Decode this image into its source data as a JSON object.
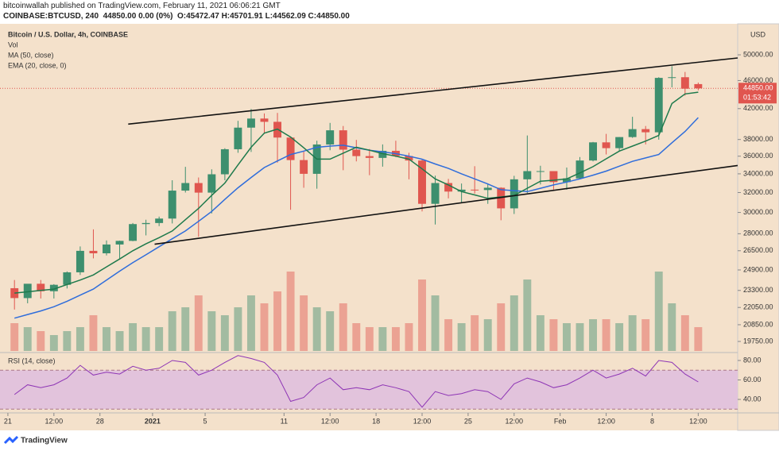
{
  "header": {
    "publisher": "bitcoinwallah published on TradingView.com, February 11, 2021 06:06:21 GMT",
    "symbol_line": "COINBASE:BTCUSD, 240  44850.00 0.00 (0%)  O:45472.47 H:45701.91 L:44562.09 C:44850.00"
  },
  "chart_data": {
    "type": "candlestick",
    "title": "Bitcoin / U.S. Dollar, 4h, COINBASE",
    "volume_label": "Vol",
    "y_unit": "USD",
    "categories": [
      null,
      null,
      null,
      null,
      null,
      null,
      null,
      null,
      null,
      null,
      null,
      null,
      null,
      null,
      null,
      null,
      null,
      null,
      null,
      null,
      null,
      null,
      null,
      null,
      null,
      null,
      null,
      null,
      null,
      null,
      null,
      null,
      null,
      null,
      null,
      null,
      null,
      null,
      null,
      null,
      null,
      null,
      null,
      null,
      null,
      null,
      null,
      null,
      null,
      null,
      null,
      null,
      null
    ],
    "open": [
      23470,
      22730,
      23810,
      23240,
      23730,
      24710,
      26490,
      26280,
      27040,
      27360,
      28890,
      28990,
      29410,
      32200,
      33000,
      31990,
      33950,
      36820,
      39490,
      40670,
      40240,
      38240,
      35550,
      34000,
      37390,
      39150,
      36770,
      36010,
      35800,
      36630,
      36020,
      35500,
      30850,
      33000,
      32100,
      32300,
      32260,
      32500,
      30400,
      33400,
      34300,
      34300,
      33100,
      33500,
      35500,
      37650,
      36950,
      38300,
      39300,
      38900,
      46400,
      46500,
      45472.47
    ],
    "high": [
      24100,
      23800,
      24100,
      23780,
      24780,
      26870,
      28400,
      27400,
      27380,
      28990,
      29300,
      29600,
      33300,
      34780,
      33600,
      34500,
      36940,
      40370,
      41950,
      41350,
      41420,
      38260,
      36600,
      37850,
      40100,
      39700,
      37950,
      36850,
      37400,
      37850,
      36400,
      35600,
      33800,
      33450,
      32950,
      34850,
      32900,
      32550,
      33780,
      38500,
      34900,
      34300,
      34700,
      35900,
      37700,
      38700,
      38300,
      40900,
      39700,
      46500,
      48200,
      47300,
      45701.91
    ],
    "low": [
      21900,
      22350,
      22700,
      22700,
      23450,
      24500,
      25850,
      26100,
      25850,
      27330,
      27850,
      28700,
      28950,
      32000,
      27730,
      29900,
      33300,
      36400,
      36500,
      38720,
      35250,
      30260,
      32500,
      32400,
      36700,
      34400,
      35400,
      33850,
      34800,
      35900,
      33400,
      30100,
      28850,
      31400,
      30950,
      31900,
      30850,
      29250,
      29850,
      31950,
      32850,
      32300,
      32300,
      33400,
      35400,
      36200,
      36600,
      38200,
      37400,
      37980,
      45000,
      43800,
      44562.09
    ],
    "close": [
      22730,
      23810,
      23240,
      23730,
      24710,
      26490,
      26280,
      27040,
      27360,
      28890,
      28990,
      29410,
      32200,
      33000,
      31990,
      33950,
      36820,
      39490,
      40670,
      40240,
      38240,
      35550,
      34000,
      37390,
      39150,
      36770,
      36010,
      35800,
      36630,
      36020,
      35500,
      30850,
      33000,
      32100,
      32300,
      32260,
      32500,
      30400,
      33400,
      34300,
      34300,
      33100,
      33500,
      35500,
      37650,
      36950,
      38300,
      39300,
      38900,
      46400,
      46500,
      44800,
      44850
    ],
    "volume": [
      35,
      30,
      25,
      20,
      25,
      30,
      45,
      30,
      25,
      35,
      30,
      30,
      50,
      55,
      70,
      50,
      45,
      55,
      70,
      60,
      75,
      100,
      70,
      55,
      50,
      60,
      35,
      30,
      30,
      30,
      35,
      90,
      70,
      40,
      35,
      45,
      40,
      60,
      70,
      90,
      45,
      40,
      35,
      35,
      40,
      40,
      35,
      45,
      40,
      100,
      60,
      45,
      30
    ],
    "up_color": "#3d8f6e",
    "down_color": "#e0564f",
    "series": [
      {
        "name": "MA (50, close)",
        "color": "#2f6ddb",
        "values": [
          21300,
          21550,
          21800,
          22100,
          22500,
          22950,
          23400,
          24100,
          24800,
          25500,
          26150,
          26850,
          27550,
          28250,
          29150,
          30100,
          31300,
          32500,
          33600,
          34700,
          35450,
          36200,
          36600,
          37050,
          37200,
          37300,
          37000,
          36700,
          36500,
          36300,
          36000,
          35650,
          35100,
          34600,
          34000,
          33450,
          32900,
          32300,
          32200,
          32100,
          32450,
          32800,
          33100,
          33450,
          33850,
          34300,
          34850,
          35400,
          35800,
          36200,
          37600,
          39000,
          40800
        ]
      },
      {
        "name": "EMA (20, close, 0)",
        "color": "#1e7a4c",
        "values": [
          23100,
          23200,
          23300,
          23400,
          23750,
          24100,
          24500,
          25150,
          25800,
          26500,
          27100,
          27650,
          28250,
          29300,
          30400,
          31700,
          33000,
          35000,
          37060,
          38800,
          39300,
          38300,
          37000,
          35660,
          35660,
          36350,
          37060,
          36700,
          36300,
          36000,
          35660,
          34550,
          33450,
          32800,
          32100,
          31750,
          31400,
          31550,
          31700,
          32450,
          33200,
          33300,
          33450,
          34100,
          34800,
          35700,
          36600,
          37200,
          37800,
          38500,
          42700,
          44050,
          44300
        ]
      }
    ],
    "xlim": [
      0.4,
      56.5
    ],
    "xticks": [
      {
        "value": 1,
        "label": "21"
      },
      {
        "value": 4.5,
        "label": "12:00"
      },
      {
        "value": 8,
        "label": "28"
      },
      {
        "value": 12,
        "label": "2021"
      },
      {
        "value": 16,
        "label": "5"
      },
      {
        "value": 22,
        "label": "11"
      },
      {
        "value": 25.5,
        "label": "12:00"
      },
      {
        "value": 29,
        "label": "18"
      },
      {
        "value": 32.5,
        "label": "12:00"
      },
      {
        "value": 36,
        "label": "25"
      },
      {
        "value": 39.5,
        "label": "12:00"
      },
      {
        "value": 43,
        "label": "Feb"
      },
      {
        "value": 46.5,
        "label": "12:00"
      },
      {
        "value": 50,
        "label": "8"
      },
      {
        "value": 53.5,
        "label": "12:00"
      }
    ],
    "ylim": [
      19200,
      55000
    ],
    "log": true,
    "yticks": [
      {
        "value": 19750,
        "label": "19750.00"
      },
      {
        "value": 20850,
        "label": "20850.00"
      },
      {
        "value": 22050,
        "label": "22050.00"
      },
      {
        "value": 23300,
        "label": "23300.00"
      },
      {
        "value": 24900,
        "label": "24900.00"
      },
      {
        "value": 26500,
        "label": "26500.00"
      },
      {
        "value": 28000,
        "label": "28000.00"
      },
      {
        "value": 30000,
        "label": "30000.00"
      },
      {
        "value": 32000,
        "label": "32000.00"
      },
      {
        "value": 34000,
        "label": "34000.00"
      },
      {
        "value": 36000,
        "label": "36000.00"
      },
      {
        "value": 38000,
        "label": "38000.00"
      },
      {
        "value": 42000,
        "label": "42000.00"
      },
      {
        "value": 46000,
        "label": "46000.00"
      },
      {
        "value": 50000,
        "label": "50000.00"
      }
    ],
    "last_price": {
      "value": 44850,
      "label": "44850.00",
      "countdown": "01:53:42",
      "color": "#e0564f"
    },
    "trendlines": [
      {
        "x": [
          10.15,
          56.5
        ],
        "y": [
          39940,
          49490
        ]
      },
      {
        "x": [
          12.16,
          56.5
        ],
        "y": [
          27060,
          34930
        ]
      }
    ],
    "rsi": {
      "title": "RSI (14, close)",
      "color": "#8e35b5",
      "values": [
        45,
        55,
        52,
        55,
        62,
        75,
        65,
        68,
        66,
        74,
        70,
        72,
        80,
        78,
        65,
        70,
        78,
        85,
        82,
        78,
        65,
        38,
        42,
        55,
        62,
        50,
        52,
        50,
        55,
        52,
        48,
        32,
        48,
        44,
        46,
        50,
        48,
        40,
        56,
        62,
        58,
        52,
        55,
        62,
        70,
        62,
        66,
        72,
        64,
        80,
        78,
        66,
        58
      ],
      "ylim": [
        27.8,
        86.5
      ],
      "band": [
        30,
        70
      ],
      "yticks": [
        {
          "value": 40,
          "label": "40.00"
        },
        {
          "value": 60,
          "label": "60.00"
        },
        {
          "value": 80,
          "label": "80.00"
        }
      ]
    }
  },
  "footer": {
    "brand": "TradingView"
  }
}
